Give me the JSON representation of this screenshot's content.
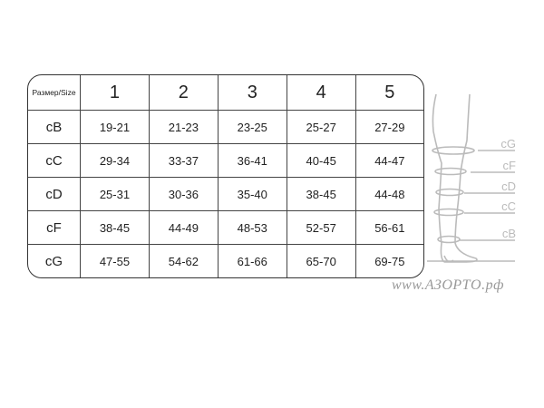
{
  "table": {
    "corner_label": "Размер/Size",
    "sizes": [
      "1",
      "2",
      "3",
      "4",
      "5"
    ],
    "rows": [
      {
        "label": "cB",
        "values": [
          "19-21",
          "21-23",
          "23-25",
          "25-27",
          "27-29"
        ]
      },
      {
        "label": "cC",
        "values": [
          "29-34",
          "33-37",
          "36-41",
          "40-45",
          "44-47"
        ]
      },
      {
        "label": "cD",
        "values": [
          "25-31",
          "30-36",
          "35-40",
          "38-45",
          "44-48"
        ]
      },
      {
        "label": "cF",
        "values": [
          "38-45",
          "44-49",
          "48-53",
          "52-57",
          "56-61"
        ]
      },
      {
        "label": "cG",
        "values": [
          "47-55",
          "54-62",
          "61-66",
          "65-70",
          "69-75"
        ]
      }
    ]
  },
  "diagram": {
    "labels": [
      "cG",
      "cF",
      "cD",
      "cC",
      "cB"
    ],
    "color": "#bbbbbb"
  },
  "watermark": "www.АЗОРТО.рф"
}
